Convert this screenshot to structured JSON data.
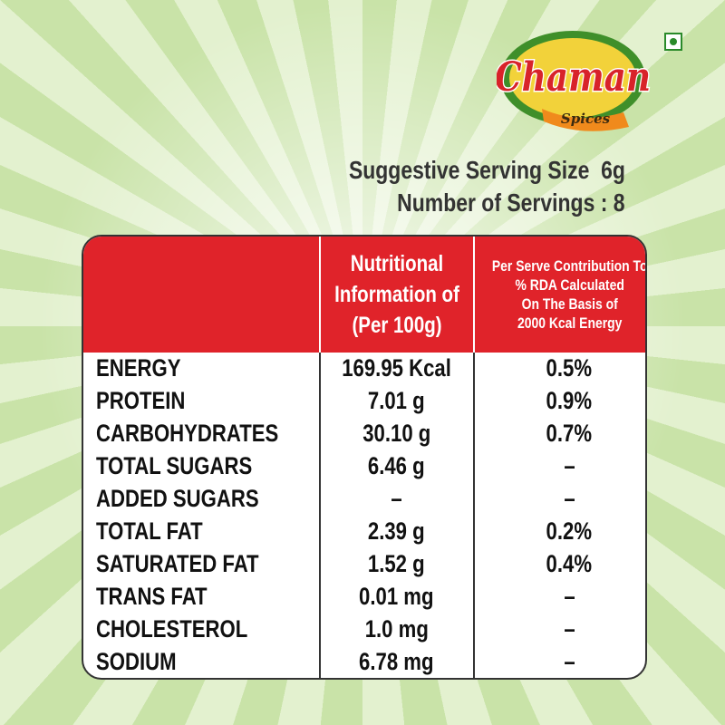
{
  "brand": {
    "name": "Chaman",
    "tagline": "Spices"
  },
  "serving": {
    "size": "Suggestive Serving Size  6g",
    "count": "Number of Servings : 8"
  },
  "table": {
    "header": [
      [
        "Nutritional",
        "Information of",
        "(Per 100g)"
      ],
      [
        "Per Serve Contribution To",
        "% RDA Calculated",
        "On The Basis of",
        "2000 Kcal Energy"
      ]
    ],
    "rows": [
      [
        "ENERGY",
        "169.95 Kcal",
        "0.5%"
      ],
      [
        "PROTEIN",
        "7.01 g",
        "0.9%"
      ],
      [
        "CARBOHYDRATES",
        "30.10 g",
        "0.7%"
      ],
      [
        "TOTAL SUGARS",
        "6.46 g",
        "–"
      ],
      [
        "ADDED SUGARS",
        "–",
        "–"
      ],
      [
        "TOTAL FAT",
        "2.39 g",
        "0.2%"
      ],
      [
        "SATURATED FAT",
        "1.52 g",
        "0.4%"
      ],
      [
        "TRANS FAT",
        "0.01 mg",
        "–"
      ],
      [
        "CHOLESTEROL",
        "1.0 mg",
        "–"
      ],
      [
        "SODIUM",
        "6.78 mg",
        "–"
      ]
    ]
  }
}
